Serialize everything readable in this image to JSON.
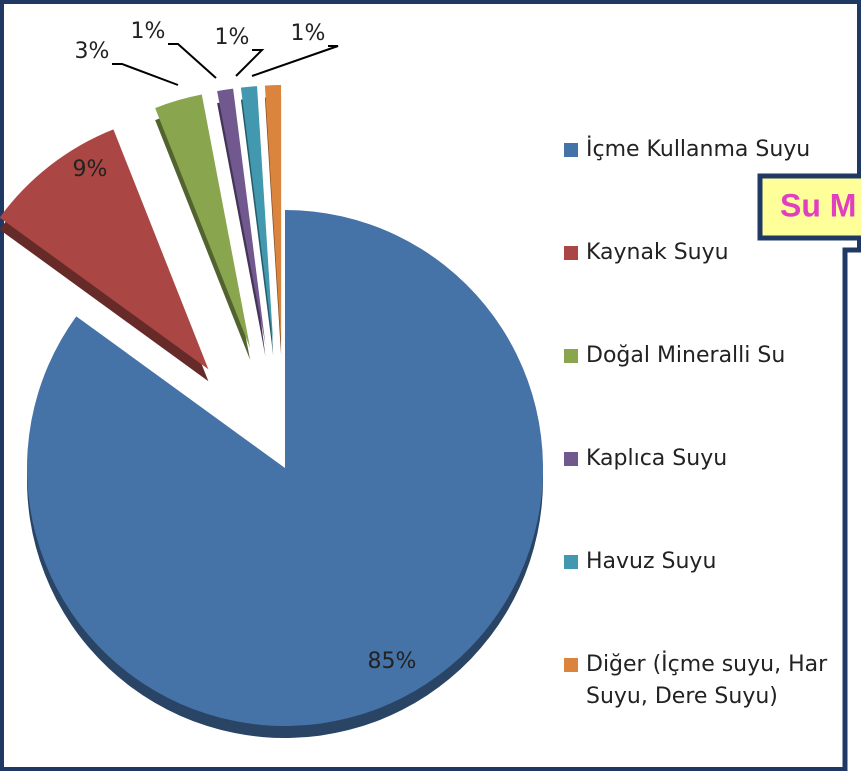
{
  "chart_data": {
    "type": "pie",
    "categories": [
      "İçme Kullanma Suyu",
      "Kaynak Suyu",
      "Doğal Mineralli Su",
      "Kaplıca Suyu",
      "Havuz Suyu",
      "Diğer (İçme suyu, Har Suyu, Dere Suyu)"
    ],
    "values": [
      85,
      9,
      3,
      1,
      1,
      1
    ],
    "value_labels": [
      "85%",
      "9%",
      "3%",
      "1%",
      "1%",
      "1%"
    ],
    "colors": [
      "#4572a7",
      "#aa4643",
      "#89a54e",
      "#71588f",
      "#4198af",
      "#db843d"
    ],
    "legend": "right"
  },
  "overlay": {
    "title": "Su M"
  }
}
